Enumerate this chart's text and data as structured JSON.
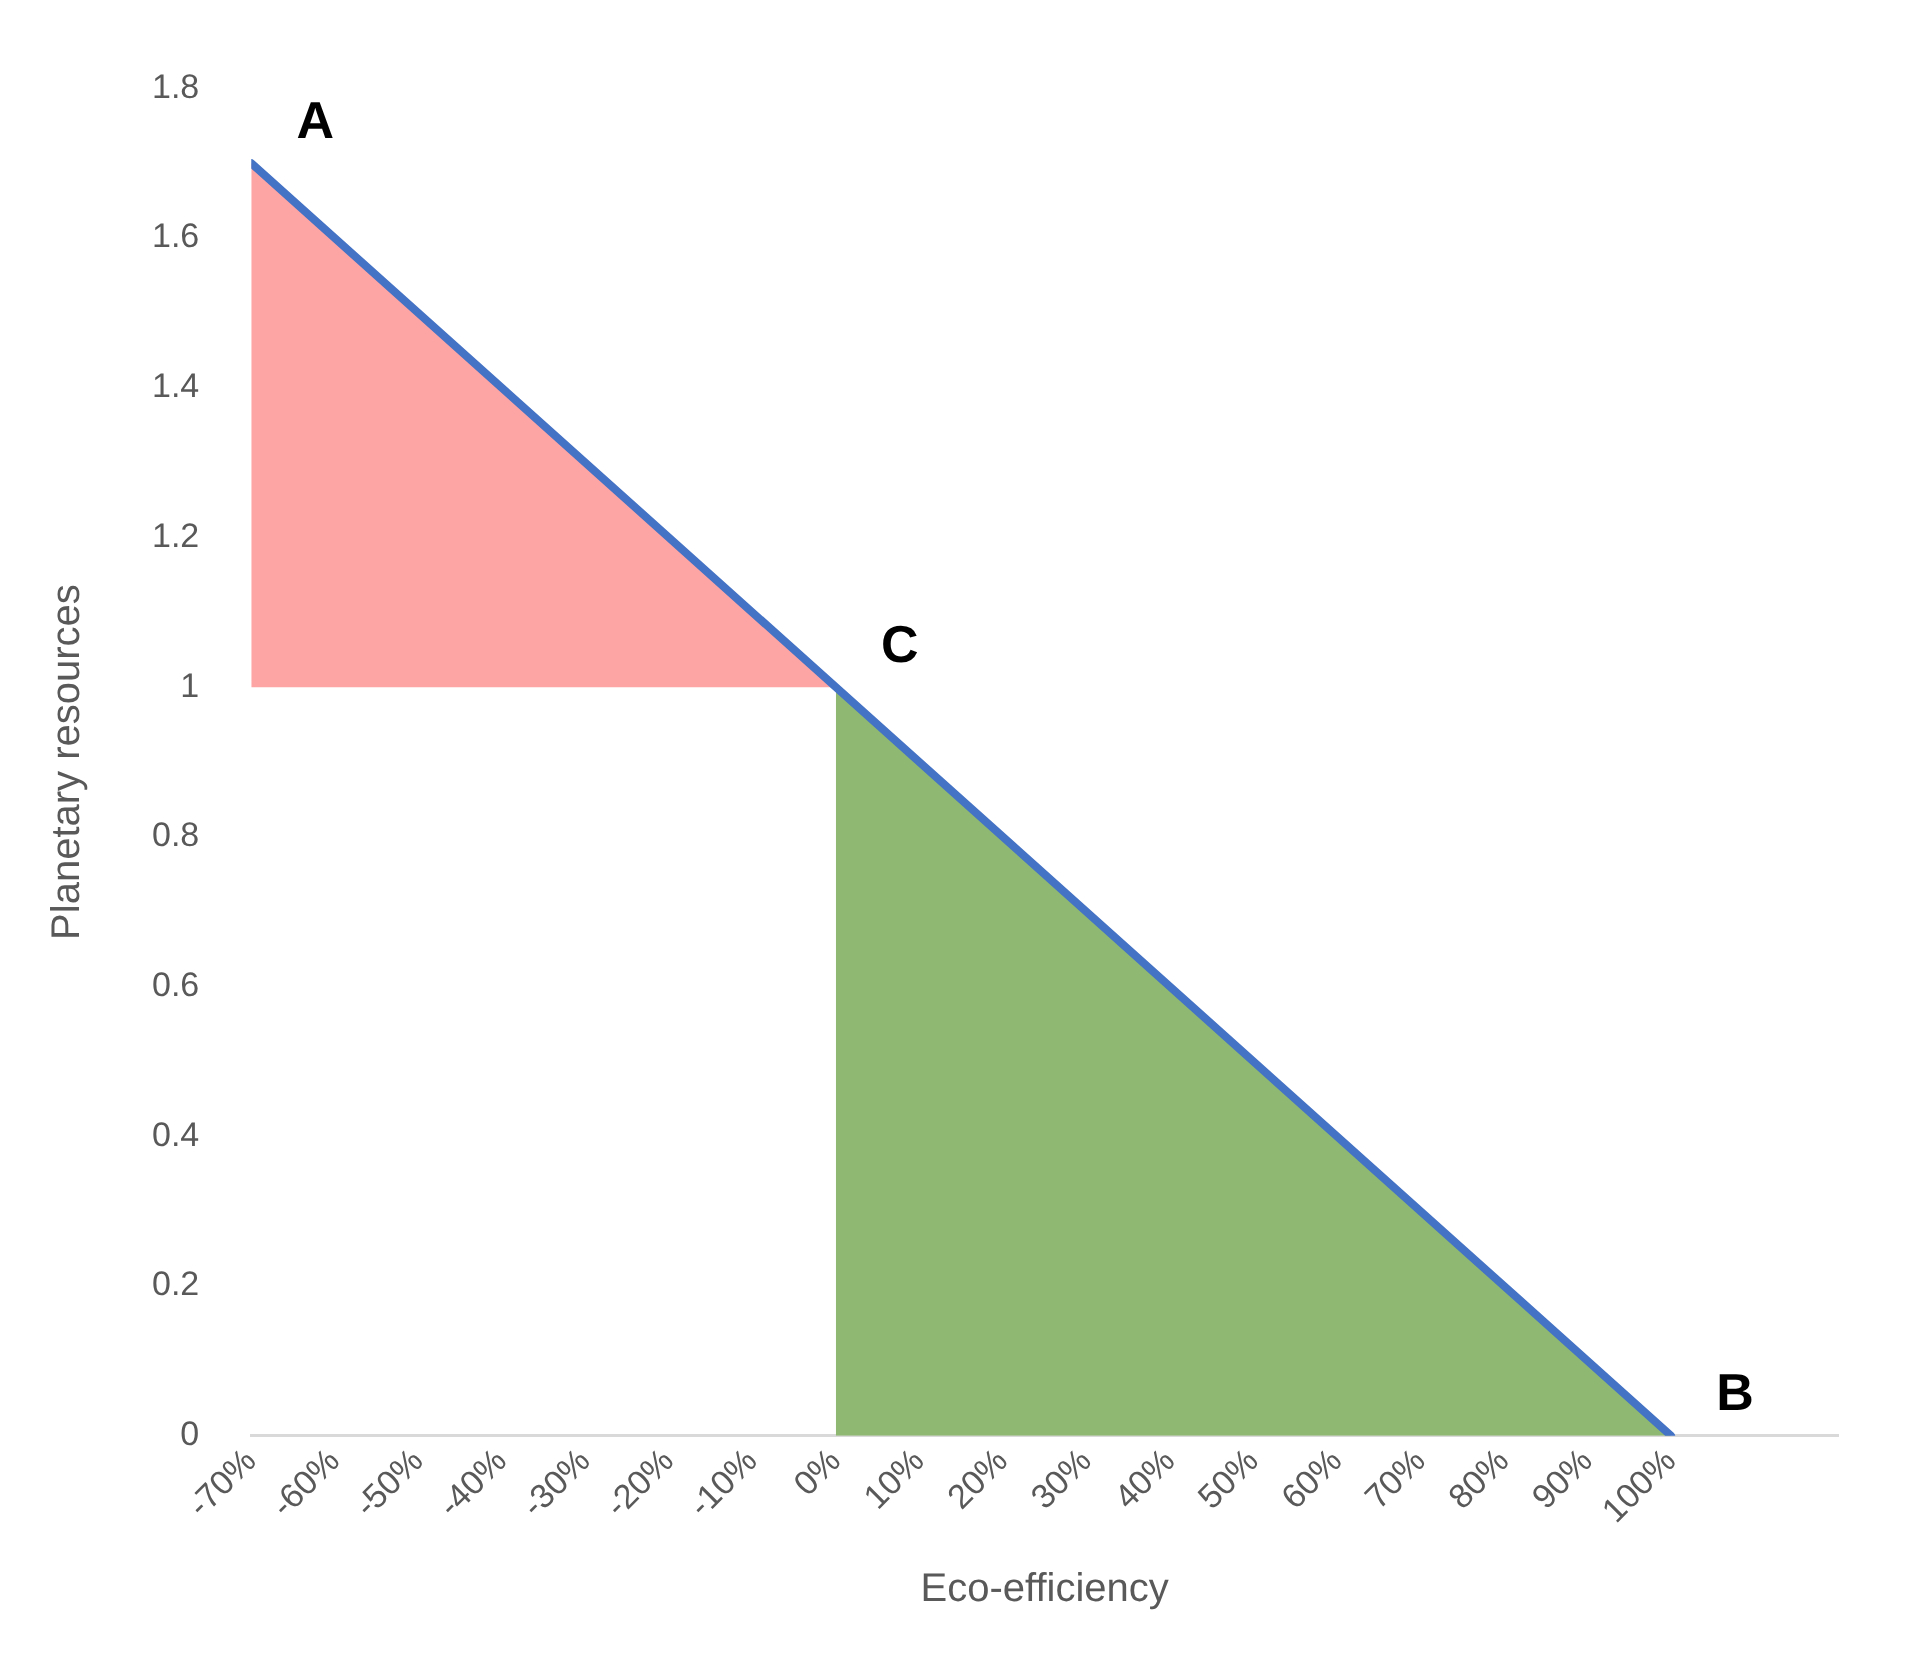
{
  "chart_data": {
    "type": "line",
    "xlabel": "Eco-efficiency",
    "ylabel": "Planetary resources",
    "xlim": [
      -70,
      120
    ],
    "xticks": [
      {
        "value": -70,
        "label": "-70%"
      },
      {
        "value": -60,
        "label": "-60%"
      },
      {
        "value": -50,
        "label": "-50%"
      },
      {
        "value": -40,
        "label": "-40%"
      },
      {
        "value": -30,
        "label": "-30%"
      },
      {
        "value": -20,
        "label": "-20%"
      },
      {
        "value": -10,
        "label": "-10%"
      },
      {
        "value": 0,
        "label": "0%"
      },
      {
        "value": 10,
        "label": "10%"
      },
      {
        "value": 20,
        "label": "20%"
      },
      {
        "value": 30,
        "label": "30%"
      },
      {
        "value": 40,
        "label": "40%"
      },
      {
        "value": 50,
        "label": "50%"
      },
      {
        "value": 60,
        "label": "60%"
      },
      {
        "value": 70,
        "label": "70%"
      },
      {
        "value": 80,
        "label": "80%"
      },
      {
        "value": 90,
        "label": "90%"
      },
      {
        "value": 100,
        "label": "100%"
      }
    ],
    "ylim": [
      0,
      1.8
    ],
    "yticks": [
      0,
      0.2,
      0.4,
      0.6,
      0.8,
      1,
      1.2,
      1.4,
      1.6,
      1.8
    ],
    "grid": false,
    "legend": false,
    "marker": "none",
    "line_style": "solid",
    "series": [
      {
        "color": "#4472c4",
        "x": [
          -70,
          100
        ],
        "values": [
          1.7,
          0
        ]
      },
      {
        "type": "area",
        "color": "#fda4a4",
        "x": [
          -70,
          0
        ],
        "values": [
          1.7,
          1
        ]
      },
      {
        "type": "area",
        "color": "#8fb873",
        "x": [
          0,
          100
        ],
        "values": [
          1,
          0
        ]
      }
    ],
    "annotations": [
      {
        "text": "A",
        "x": -70,
        "y": 1.7
      },
      {
        "text": "C",
        "x": 0,
        "y": 1
      },
      {
        "text": "B",
        "x": 100,
        "y": 0
      }
    ]
  }
}
